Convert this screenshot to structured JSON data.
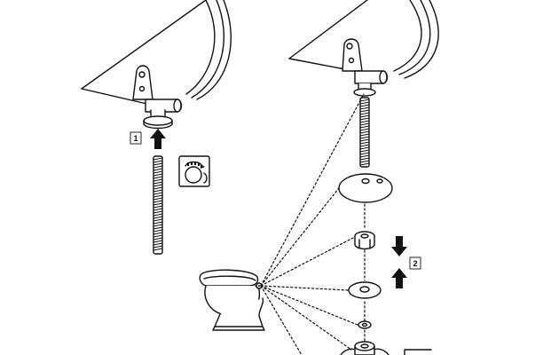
{
  "steps": [
    {
      "number": "1"
    },
    {
      "number": "2"
    }
  ],
  "icons": {
    "left_hinge": "toilet-seat-hinge-icon",
    "right_hinge": "toilet-seat-hinge-icon",
    "threaded_rod": "threaded-rod-icon",
    "detail_callout": "hand-tighten-callout-icon",
    "bolt": "threaded-bolt-icon",
    "large_washer": "large-washer-icon",
    "nut": "hex-nut-icon",
    "small_washer": "small-washer-icon",
    "tiny_washer": "tiny-washer-icon",
    "wing_nut": "wing-nut-icon",
    "toilet": "toilet-bowl-icon",
    "arrow_up": "arrow-up-icon",
    "arrow_down": "arrow-down-icon"
  },
  "colors": {
    "ink": "#111111",
    "paper": "#ffffff"
  }
}
